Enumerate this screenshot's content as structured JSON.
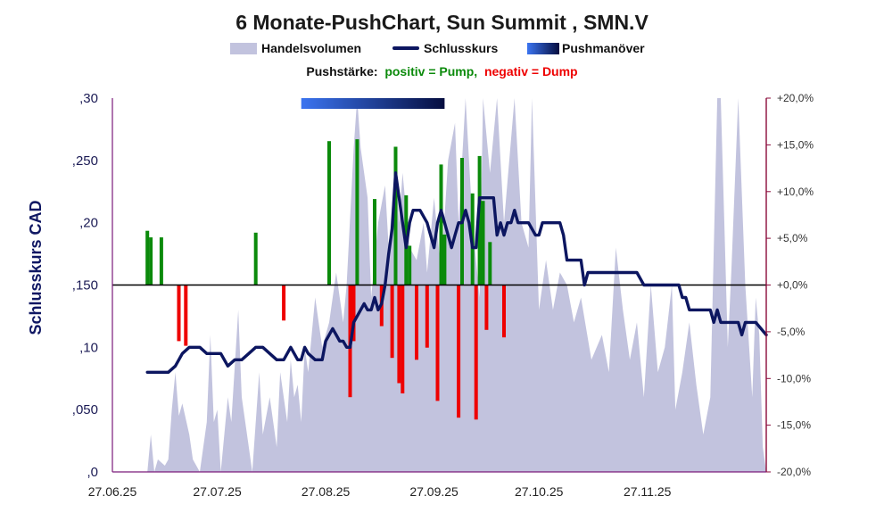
{
  "title": "6 Monate-PushChart, Sun Summit , SMN.V",
  "legend": {
    "volume": "Handelsvolumen",
    "close": "Schlusskurs",
    "push": "Pushmanöver"
  },
  "pushline": {
    "key": "Pushstärke:",
    "positive": "positiv = Pump,",
    "negative": "negativ = Dump"
  },
  "colors": {
    "volume": "#c2c3de",
    "close": "#0c1660",
    "pump": "#0b8a0b",
    "dump": "#ee0000",
    "push_start": "#3b74f0",
    "push_end": "#050d3f",
    "left_axis": "#7a1a7a",
    "right_axis": "#8a0a3a"
  },
  "chart_data": {
    "type": "combo",
    "ylabel": "Schlusskurs CAD",
    "ylim": [
      0,
      0.3
    ],
    "y2lim": [
      -20,
      20
    ],
    "yticks": [
      ",0",
      ",050",
      ",10",
      ",150",
      ",20",
      ",250",
      ",30"
    ],
    "yticks_values": [
      0,
      0.05,
      0.1,
      0.15,
      0.2,
      0.25,
      0.3
    ],
    "y2ticks": [
      "-20,0%",
      "-15,0%",
      "-10,0%",
      "-5,0%",
      "+0,0%",
      "+5,0%",
      "+10,0%",
      "+15,0%",
      "+20,0%"
    ],
    "y2ticks_values": [
      -20,
      -15,
      -10,
      -5,
      0,
      5,
      10,
      15,
      20
    ],
    "xticks": [
      "27.06.25",
      "27.07.25",
      "27.08.25",
      "27.09.25",
      "27.10.25",
      "27.11.25"
    ],
    "x_start": "2025-06-27",
    "x_end": "2025-12-31",
    "push_period": [
      "2025-08-20",
      "2025-09-30"
    ],
    "close": [
      [
        "2025-07-07",
        0.08
      ],
      [
        "2025-07-10",
        0.08
      ],
      [
        "2025-07-13",
        0.08
      ],
      [
        "2025-07-15",
        0.085
      ],
      [
        "2025-07-17",
        0.095
      ],
      [
        "2025-07-19",
        0.1
      ],
      [
        "2025-07-22",
        0.1
      ],
      [
        "2025-07-24",
        0.095
      ],
      [
        "2025-07-26",
        0.095
      ],
      [
        "2025-07-28",
        0.095
      ],
      [
        "2025-07-30",
        0.085
      ],
      [
        "2025-08-01",
        0.09
      ],
      [
        "2025-08-03",
        0.09
      ],
      [
        "2025-08-05",
        0.095
      ],
      [
        "2025-08-07",
        0.1
      ],
      [
        "2025-08-09",
        0.1
      ],
      [
        "2025-08-11",
        0.095
      ],
      [
        "2025-08-13",
        0.09
      ],
      [
        "2025-08-15",
        0.09
      ],
      [
        "2025-08-17",
        0.1
      ],
      [
        "2025-08-18",
        0.095
      ],
      [
        "2025-08-19",
        0.09
      ],
      [
        "2025-08-20",
        0.09
      ],
      [
        "2025-08-21",
        0.1
      ],
      [
        "2025-08-22",
        0.095
      ],
      [
        "2025-08-24",
        0.09
      ],
      [
        "2025-08-25",
        0.09
      ],
      [
        "2025-08-26",
        0.09
      ],
      [
        "2025-08-27",
        0.105
      ],
      [
        "2025-08-28",
        0.11
      ],
      [
        "2025-08-29",
        0.115
      ],
      [
        "2025-08-30",
        0.11
      ],
      [
        "2025-08-31",
        0.105
      ],
      [
        "2025-09-01",
        0.105
      ],
      [
        "2025-09-02",
        0.1
      ],
      [
        "2025-09-03",
        0.1
      ],
      [
        "2025-09-04",
        0.12
      ],
      [
        "2025-09-05",
        0.125
      ],
      [
        "2025-09-06",
        0.13
      ],
      [
        "2025-09-07",
        0.135
      ],
      [
        "2025-09-08",
        0.13
      ],
      [
        "2025-09-09",
        0.13
      ],
      [
        "2025-09-10",
        0.14
      ],
      [
        "2025-09-11",
        0.13
      ],
      [
        "2025-09-12",
        0.135
      ],
      [
        "2025-09-13",
        0.15
      ],
      [
        "2025-09-14",
        0.175
      ],
      [
        "2025-09-15",
        0.195
      ],
      [
        "2025-09-16",
        0.24
      ],
      [
        "2025-09-17",
        0.22
      ],
      [
        "2025-09-18",
        0.2
      ],
      [
        "2025-09-19",
        0.18
      ],
      [
        "2025-09-20",
        0.2
      ],
      [
        "2025-09-21",
        0.21
      ],
      [
        "2025-09-23",
        0.21
      ],
      [
        "2025-09-25",
        0.2
      ],
      [
        "2025-09-27",
        0.18
      ],
      [
        "2025-09-28",
        0.2
      ],
      [
        "2025-09-29",
        0.21
      ],
      [
        "2025-09-30",
        0.2
      ],
      [
        "2025-10-01",
        0.19
      ],
      [
        "2025-10-02",
        0.18
      ],
      [
        "2025-10-03",
        0.19
      ],
      [
        "2025-10-04",
        0.2
      ],
      [
        "2025-10-05",
        0.2
      ],
      [
        "2025-10-06",
        0.21
      ],
      [
        "2025-10-07",
        0.2
      ],
      [
        "2025-10-08",
        0.18
      ],
      [
        "2025-10-09",
        0.18
      ],
      [
        "2025-10-10",
        0.22
      ],
      [
        "2025-10-12",
        0.22
      ],
      [
        "2025-10-14",
        0.22
      ],
      [
        "2025-10-15",
        0.19
      ],
      [
        "2025-10-16",
        0.2
      ],
      [
        "2025-10-17",
        0.19
      ],
      [
        "2025-10-18",
        0.2
      ],
      [
        "2025-10-19",
        0.2
      ],
      [
        "2025-10-20",
        0.21
      ],
      [
        "2025-10-21",
        0.2
      ],
      [
        "2025-10-22",
        0.2
      ],
      [
        "2025-10-24",
        0.2
      ],
      [
        "2025-10-26",
        0.19
      ],
      [
        "2025-10-27",
        0.19
      ],
      [
        "2025-10-28",
        0.2
      ],
      [
        "2025-10-30",
        0.2
      ],
      [
        "2025-11-01",
        0.2
      ],
      [
        "2025-11-02",
        0.2
      ],
      [
        "2025-11-03",
        0.19
      ],
      [
        "2025-11-04",
        0.17
      ],
      [
        "2025-11-06",
        0.17
      ],
      [
        "2025-11-08",
        0.17
      ],
      [
        "2025-11-09",
        0.15
      ],
      [
        "2025-11-10",
        0.16
      ],
      [
        "2025-11-12",
        0.16
      ],
      [
        "2025-11-15",
        0.16
      ],
      [
        "2025-11-18",
        0.16
      ],
      [
        "2025-11-21",
        0.16
      ],
      [
        "2025-11-24",
        0.16
      ],
      [
        "2025-11-26",
        0.15
      ],
      [
        "2025-11-28",
        0.15
      ],
      [
        "2025-12-01",
        0.15
      ],
      [
        "2025-12-04",
        0.15
      ],
      [
        "2025-12-06",
        0.15
      ],
      [
        "2025-12-07",
        0.14
      ],
      [
        "2025-12-08",
        0.14
      ],
      [
        "2025-12-09",
        0.13
      ],
      [
        "2025-12-12",
        0.13
      ],
      [
        "2025-12-15",
        0.13
      ],
      [
        "2025-12-16",
        0.12
      ],
      [
        "2025-12-17",
        0.13
      ],
      [
        "2025-12-18",
        0.12
      ],
      [
        "2025-12-20",
        0.12
      ],
      [
        "2025-12-23",
        0.12
      ],
      [
        "2025-12-24",
        0.11
      ],
      [
        "2025-12-25",
        0.12
      ],
      [
        "2025-12-28",
        0.12
      ],
      [
        "2025-12-31",
        0.11
      ]
    ],
    "volume": [
      [
        "2025-06-27",
        0.0
      ],
      [
        "2025-07-07",
        0.0
      ],
      [
        "2025-07-08",
        0.03
      ],
      [
        "2025-07-09",
        0.0
      ],
      [
        "2025-07-10",
        0.01
      ],
      [
        "2025-07-12",
        0.005
      ],
      [
        "2025-07-13",
        0.01
      ],
      [
        "2025-07-14",
        0.05
      ],
      [
        "2025-07-15",
        0.08
      ],
      [
        "2025-07-16",
        0.045
      ],
      [
        "2025-07-17",
        0.055
      ],
      [
        "2025-07-19",
        0.03
      ],
      [
        "2025-07-20",
        0.01
      ],
      [
        "2025-07-22",
        0.0
      ],
      [
        "2025-07-24",
        0.04
      ],
      [
        "2025-07-25",
        0.11
      ],
      [
        "2025-07-26",
        0.04
      ],
      [
        "2025-07-27",
        0.05
      ],
      [
        "2025-07-28",
        0.0
      ],
      [
        "2025-07-30",
        0.06
      ],
      [
        "2025-07-31",
        0.04
      ],
      [
        "2025-08-02",
        0.13
      ],
      [
        "2025-08-03",
        0.06
      ],
      [
        "2025-08-05",
        0.02
      ],
      [
        "2025-08-06",
        0.0
      ],
      [
        "2025-08-08",
        0.08
      ],
      [
        "2025-08-09",
        0.03
      ],
      [
        "2025-08-11",
        0.06
      ],
      [
        "2025-08-13",
        0.02
      ],
      [
        "2025-08-14",
        0.08
      ],
      [
        "2025-08-16",
        0.04
      ],
      [
        "2025-08-17",
        0.09
      ],
      [
        "2025-08-18",
        0.06
      ],
      [
        "2025-08-19",
        0.07
      ],
      [
        "2025-08-20",
        0.04
      ],
      [
        "2025-08-21",
        0.1
      ],
      [
        "2025-08-22",
        0.08
      ],
      [
        "2025-08-24",
        0.14
      ],
      [
        "2025-08-26",
        0.1
      ],
      [
        "2025-08-28",
        0.12
      ],
      [
        "2025-08-30",
        0.16
      ],
      [
        "2025-09-01",
        0.12
      ],
      [
        "2025-09-02",
        0.15
      ],
      [
        "2025-09-04",
        0.26
      ],
      [
        "2025-09-05",
        0.3
      ],
      [
        "2025-09-06",
        0.26
      ],
      [
        "2025-09-08",
        0.22
      ],
      [
        "2025-09-09",
        0.14
      ],
      [
        "2025-09-11",
        0.2
      ],
      [
        "2025-09-13",
        0.23
      ],
      [
        "2025-09-14",
        0.18
      ],
      [
        "2025-09-16",
        0.25
      ],
      [
        "2025-09-17",
        0.2
      ],
      [
        "2025-09-18",
        0.24
      ],
      [
        "2025-09-20",
        0.18
      ],
      [
        "2025-09-22",
        0.17
      ],
      [
        "2025-09-24",
        0.2
      ],
      [
        "2025-09-25",
        0.16
      ],
      [
        "2025-09-27",
        0.22
      ],
      [
        "2025-09-29",
        0.16
      ],
      [
        "2025-10-01",
        0.25
      ],
      [
        "2025-10-03",
        0.28
      ],
      [
        "2025-10-04",
        0.2
      ],
      [
        "2025-10-06",
        0.3
      ],
      [
        "2025-10-08",
        0.2
      ],
      [
        "2025-10-10",
        0.14
      ],
      [
        "2025-10-11",
        0.3
      ],
      [
        "2025-10-13",
        0.24
      ],
      [
        "2025-10-15",
        0.3
      ],
      [
        "2025-10-17",
        0.2
      ],
      [
        "2025-10-20",
        0.3
      ],
      [
        "2025-10-22",
        0.2
      ],
      [
        "2025-10-24",
        0.18
      ],
      [
        "2025-10-25",
        0.3
      ],
      [
        "2025-10-27",
        0.13
      ],
      [
        "2025-10-29",
        0.17
      ],
      [
        "2025-10-31",
        0.13
      ],
      [
        "2025-11-02",
        0.16
      ],
      [
        "2025-11-04",
        0.15
      ],
      [
        "2025-11-06",
        0.12
      ],
      [
        "2025-11-08",
        0.14
      ],
      [
        "2025-11-11",
        0.09
      ],
      [
        "2025-11-14",
        0.11
      ],
      [
        "2025-11-16",
        0.08
      ],
      [
        "2025-11-18",
        0.18
      ],
      [
        "2025-11-20",
        0.13
      ],
      [
        "2025-11-22",
        0.09
      ],
      [
        "2025-11-24",
        0.12
      ],
      [
        "2025-11-26",
        0.06
      ],
      [
        "2025-11-28",
        0.15
      ],
      [
        "2025-11-30",
        0.08
      ],
      [
        "2025-12-02",
        0.1
      ],
      [
        "2025-12-04",
        0.15
      ],
      [
        "2025-12-05",
        0.05
      ],
      [
        "2025-12-07",
        0.08
      ],
      [
        "2025-12-09",
        0.12
      ],
      [
        "2025-12-11",
        0.07
      ],
      [
        "2025-12-13",
        0.03
      ],
      [
        "2025-12-15",
        0.06
      ],
      [
        "2025-12-17",
        0.3
      ],
      [
        "2025-12-18",
        0.3
      ],
      [
        "2025-12-19",
        0.2
      ],
      [
        "2025-12-20",
        0.1
      ],
      [
        "2025-12-21",
        0.16
      ],
      [
        "2025-12-23",
        0.3
      ],
      [
        "2025-12-25",
        0.15
      ],
      [
        "2025-12-27",
        0.06
      ],
      [
        "2025-12-28",
        0.14
      ],
      [
        "2025-12-29",
        0.11
      ],
      [
        "2025-12-30",
        0.02
      ],
      [
        "2025-12-31",
        0.0
      ]
    ],
    "push": [
      [
        "2025-07-07",
        5.8
      ],
      [
        "2025-07-08",
        5.1
      ],
      [
        "2025-07-11",
        5.1
      ],
      [
        "2025-07-16",
        -6.0
      ],
      [
        "2025-07-18",
        -6.5
      ],
      [
        "2025-08-07",
        5.6
      ],
      [
        "2025-08-15",
        -3.8
      ],
      [
        "2025-08-28",
        15.4
      ],
      [
        "2025-09-03",
        -12.0
      ],
      [
        "2025-09-04",
        -6.0
      ],
      [
        "2025-09-05",
        15.6
      ],
      [
        "2025-09-10",
        9.2
      ],
      [
        "2025-09-12",
        -4.4
      ],
      [
        "2025-09-15",
        -7.8
      ],
      [
        "2025-09-16",
        14.8
      ],
      [
        "2025-09-17",
        -10.5
      ],
      [
        "2025-09-18",
        -11.6
      ],
      [
        "2025-09-19",
        9.6
      ],
      [
        "2025-09-20",
        4.2
      ],
      [
        "2025-09-22",
        -8.0
      ],
      [
        "2025-09-25",
        -6.7
      ],
      [
        "2025-09-28",
        -12.4
      ],
      [
        "2025-09-29",
        12.9
      ],
      [
        "2025-09-30",
        5.4
      ],
      [
        "2025-10-04",
        -14.2
      ],
      [
        "2025-10-05",
        13.6
      ],
      [
        "2025-10-08",
        9.8
      ],
      [
        "2025-10-09",
        -14.4
      ],
      [
        "2025-10-10",
        13.8
      ],
      [
        "2025-10-11",
        9.0
      ],
      [
        "2025-10-12",
        -4.8
      ],
      [
        "2025-10-13",
        4.6
      ],
      [
        "2025-10-17",
        -5.6
      ]
    ]
  }
}
